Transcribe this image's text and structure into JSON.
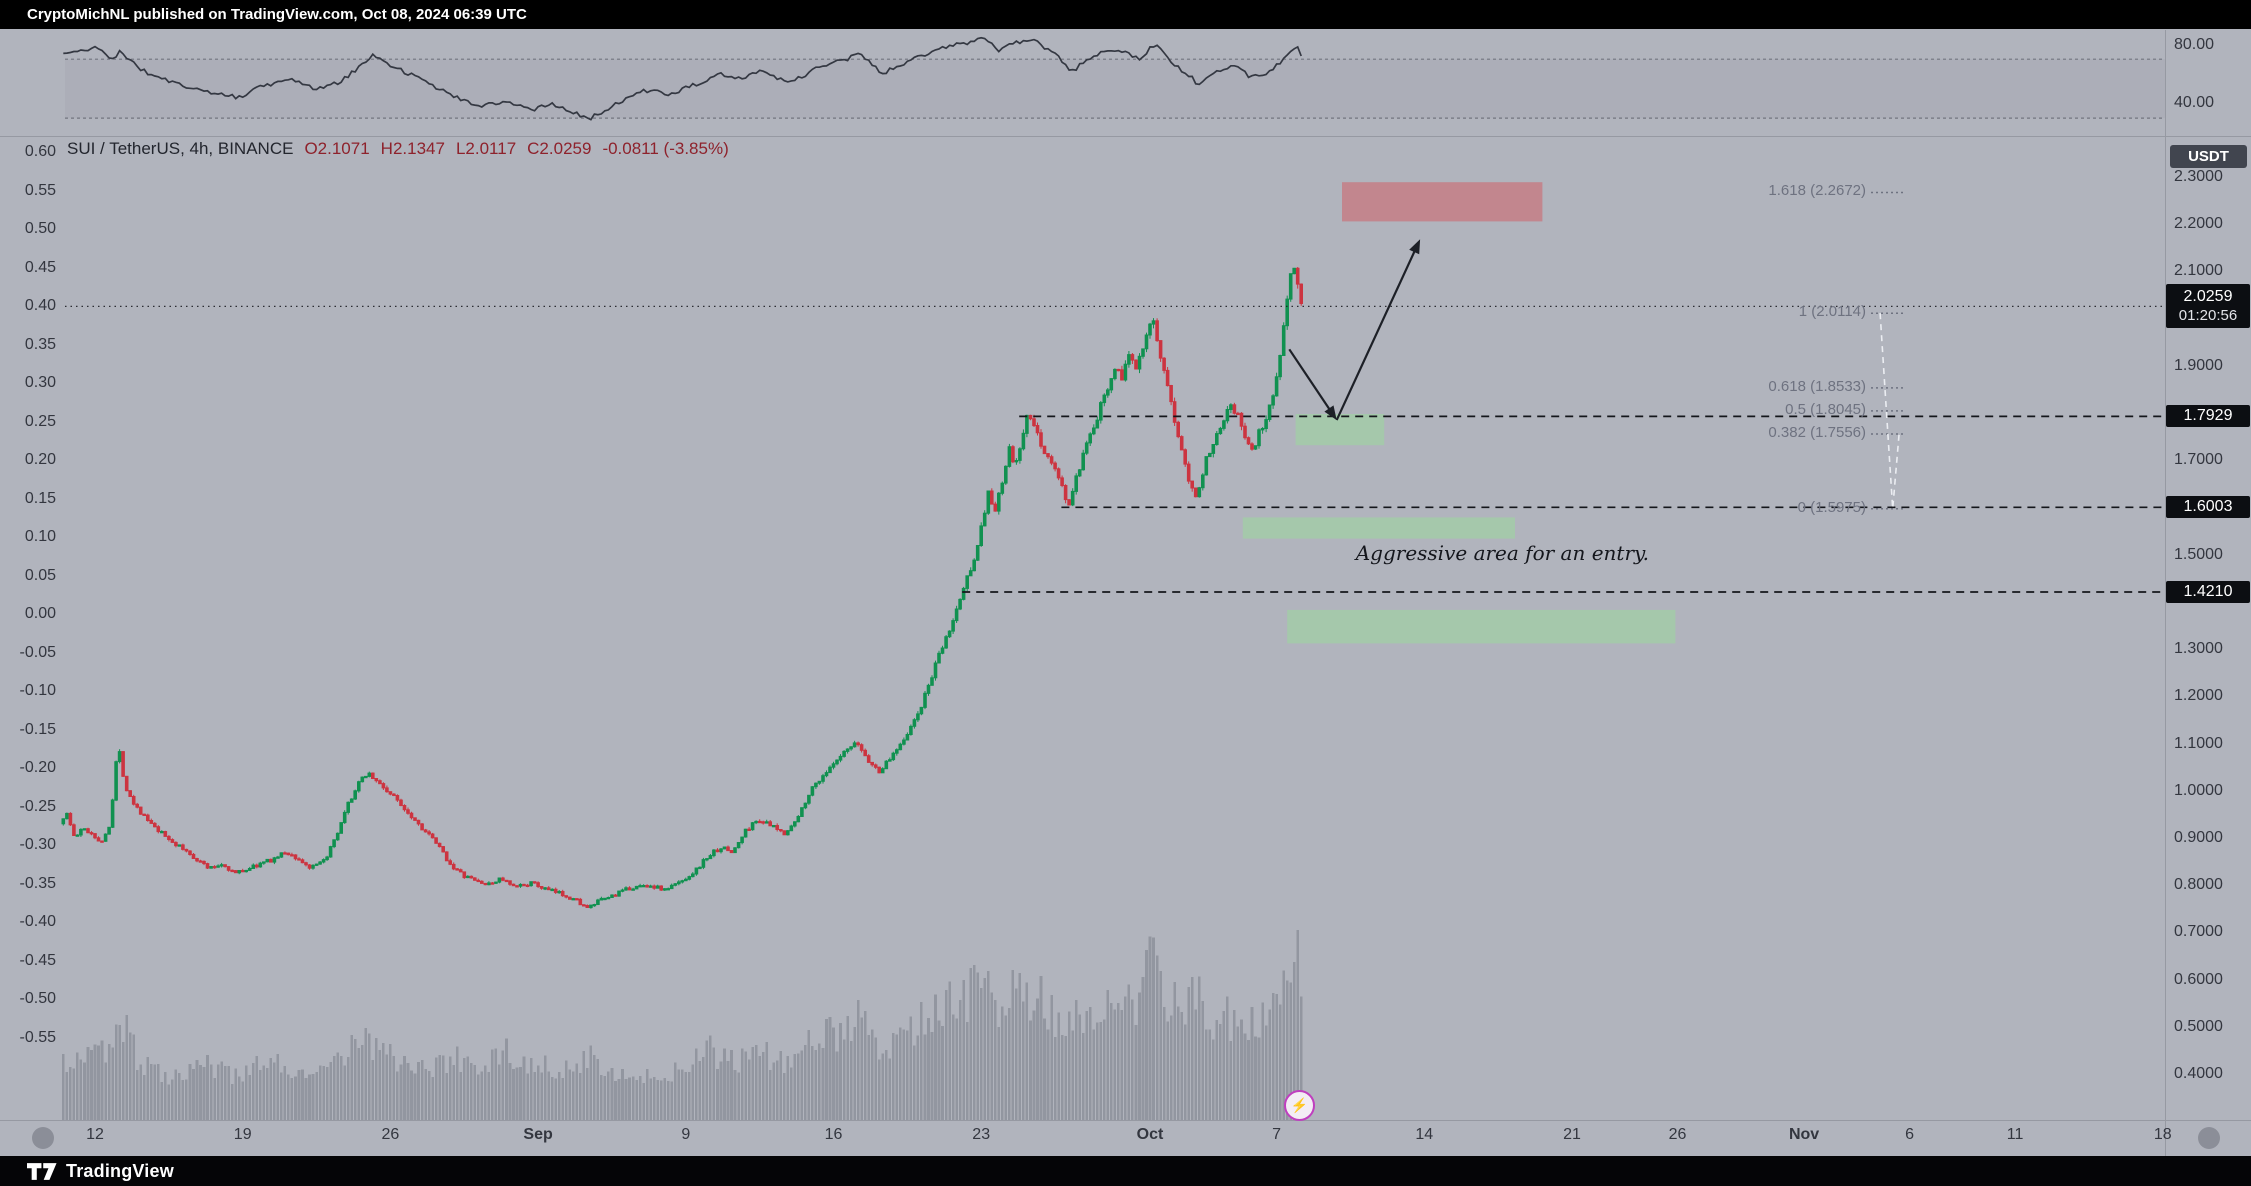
{
  "publish_bar": "CryptoMichNL published on TradingView.com, Oct 08, 2024 06:39 UTC",
  "footer": {
    "brand": "TradingView"
  },
  "chart_data": {
    "type": "candlestick",
    "symbol_line": {
      "title": "SUI / TetherUS, 4h, BINANCE",
      "open": "O2.1071",
      "high": "H2.1347",
      "low": "L2.0117",
      "close": "C2.0259",
      "change": "-0.0811 (-3.85%)"
    },
    "quote_badge": "USDT",
    "marker": {
      "glyph": "⚡"
    },
    "time_range": [
      -1.5,
      57.17
    ],
    "candle_interval_days": 0.16667,
    "price_axis": {
      "top_value": 2.3,
      "bottom_value": 0.4,
      "ticks": [
        "2.3000",
        "2.2000",
        "2.1000",
        "1.9000",
        "1.7000",
        "1.5000",
        "1.3000",
        "1.2000",
        "1.1000",
        "1.0000",
        "0.9000",
        "0.8000",
        "0.7000",
        "0.6000",
        "0.5000",
        "0.4000"
      ]
    },
    "left_axis_ticks": [
      "0.60",
      "0.55",
      "0.50",
      "0.45",
      "0.40",
      "0.35",
      "0.30",
      "0.25",
      "0.20",
      "0.15",
      "0.10",
      "0.05",
      "0.00",
      "-0.05",
      "-0.10",
      "-0.15",
      "-0.20",
      "-0.25",
      "-0.30",
      "-0.35",
      "-0.40",
      "-0.45",
      "-0.50",
      "-0.55"
    ],
    "indicator_pane": {
      "ticks": [
        {
          "label": "80.00",
          "value": 80
        },
        {
          "label": "40.00",
          "value": 40
        }
      ],
      "band": [
        70,
        30
      ]
    },
    "time_axis": {
      "origin_date": "Aug 12",
      "ticks": [
        {
          "label": "12",
          "d": 0
        },
        {
          "label": "19",
          "d": 7
        },
        {
          "label": "26",
          "d": 14
        },
        {
          "label": "Sep",
          "d": 21,
          "month": true
        },
        {
          "label": "9",
          "d": 28
        },
        {
          "label": "16",
          "d": 35
        },
        {
          "label": "23",
          "d": 42
        },
        {
          "label": "Oct",
          "d": 50,
          "month": true
        },
        {
          "label": "7",
          "d": 56
        },
        {
          "label": "14",
          "d": 63
        },
        {
          "label": "21",
          "d": 70
        },
        {
          "label": "26",
          "d": 75
        },
        {
          "label": "Nov",
          "d": 81,
          "month": true
        },
        {
          "label": "6",
          "d": 86
        },
        {
          "label": "11",
          "d": 91
        },
        {
          "label": "18",
          "d": 98
        }
      ]
    },
    "price_path": [
      [
        -1.5,
        0.93
      ],
      [
        -1.2,
        0.955
      ],
      [
        -0.8,
        0.9
      ],
      [
        -0.4,
        0.92
      ],
      [
        0,
        0.91
      ],
      [
        0.5,
        0.89
      ],
      [
        0.9,
        0.935
      ],
      [
        1.25,
        1.1
      ],
      [
        1.6,
        1.01
      ],
      [
        2,
        0.975
      ],
      [
        2.5,
        0.945
      ],
      [
        3,
        0.92
      ],
      [
        3.6,
        0.9
      ],
      [
        4.2,
        0.88
      ],
      [
        5,
        0.855
      ],
      [
        5.6,
        0.835
      ],
      [
        6.2,
        0.845
      ],
      [
        6.8,
        0.825
      ],
      [
        7.4,
        0.835
      ],
      [
        8,
        0.845
      ],
      [
        8.6,
        0.855
      ],
      [
        9.2,
        0.87
      ],
      [
        9.8,
        0.855
      ],
      [
        10.4,
        0.835
      ],
      [
        11,
        0.85
      ],
      [
        11.6,
        0.9
      ],
      [
        12.2,
        0.975
      ],
      [
        12.8,
        1.025
      ],
      [
        13.1,
        1.04
      ],
      [
        13.5,
        1.02
      ],
      [
        14,
        1.0
      ],
      [
        14.6,
        0.975
      ],
      [
        15.2,
        0.945
      ],
      [
        15.8,
        0.915
      ],
      [
        16.4,
        0.885
      ],
      [
        17,
        0.845
      ],
      [
        17.6,
        0.82
      ],
      [
        18.2,
        0.81
      ],
      [
        18.8,
        0.8
      ],
      [
        19.4,
        0.815
      ],
      [
        20,
        0.795
      ],
      [
        20.8,
        0.805
      ],
      [
        21.6,
        0.79
      ],
      [
        22.4,
        0.78
      ],
      [
        23.1,
        0.765
      ],
      [
        23.5,
        0.75
      ],
      [
        24,
        0.765
      ],
      [
        24.8,
        0.78
      ],
      [
        25.6,
        0.795
      ],
      [
        26.4,
        0.8
      ],
      [
        27.2,
        0.79
      ],
      [
        28,
        0.81
      ],
      [
        28.6,
        0.83
      ],
      [
        29.2,
        0.86
      ],
      [
        29.8,
        0.88
      ],
      [
        30.4,
        0.87
      ],
      [
        31,
        0.915
      ],
      [
        31.6,
        0.94
      ],
      [
        32.2,
        0.925
      ],
      [
        32.8,
        0.91
      ],
      [
        33.4,
        0.935
      ],
      [
        34,
        0.995
      ],
      [
        34.6,
        1.03
      ],
      [
        35.2,
        1.055
      ],
      [
        35.8,
        1.085
      ],
      [
        36.3,
        1.1
      ],
      [
        36.8,
        1.065
      ],
      [
        37.3,
        1.04
      ],
      [
        37.8,
        1.065
      ],
      [
        38.3,
        1.1
      ],
      [
        38.8,
        1.13
      ],
      [
        39.3,
        1.175
      ],
      [
        39.8,
        1.24
      ],
      [
        40.3,
        1.3
      ],
      [
        40.8,
        1.355
      ],
      [
        41.3,
        1.425
      ],
      [
        41.8,
        1.49
      ],
      [
        42.2,
        1.56
      ],
      [
        42.5,
        1.635
      ],
      [
        42.8,
        1.585
      ],
      [
        43.2,
        1.66
      ],
      [
        43.5,
        1.72
      ],
      [
        43.8,
        1.685
      ],
      [
        44.1,
        1.745
      ],
      [
        44.4,
        1.8
      ],
      [
        44.7,
        1.765
      ],
      [
        45.1,
        1.725
      ],
      [
        45.6,
        1.685
      ],
      [
        46,
        1.645
      ],
      [
        46.3,
        1.6
      ],
      [
        46.7,
        1.665
      ],
      [
        47.1,
        1.72
      ],
      [
        47.6,
        1.78
      ],
      [
        48.1,
        1.85
      ],
      [
        48.5,
        1.9
      ],
      [
        48.9,
        1.875
      ],
      [
        49.2,
        1.93
      ],
      [
        49.5,
        1.9
      ],
      [
        49.9,
        1.955
      ],
      [
        50.25,
        2.01
      ],
      [
        50.6,
        1.925
      ],
      [
        51,
        1.85
      ],
      [
        51.35,
        1.78
      ],
      [
        51.7,
        1.725
      ],
      [
        52,
        1.665
      ],
      [
        52.3,
        1.62
      ],
      [
        52.7,
        1.68
      ],
      [
        53.1,
        1.735
      ],
      [
        53.6,
        1.785
      ],
      [
        54,
        1.825
      ],
      [
        54.35,
        1.79
      ],
      [
        54.7,
        1.745
      ],
      [
        55.05,
        1.72
      ],
      [
        55.4,
        1.765
      ],
      [
        55.75,
        1.8
      ],
      [
        56.1,
        1.855
      ],
      [
        56.4,
        1.95
      ],
      [
        56.7,
        2.06
      ],
      [
        56.95,
        2.13
      ],
      [
        57.15,
        2.075
      ],
      [
        57.33,
        2.026
      ]
    ],
    "rsi_path": [
      [
        -1.5,
        73
      ],
      [
        0,
        78
      ],
      [
        0.9,
        70
      ],
      [
        1.25,
        76
      ],
      [
        2,
        64
      ],
      [
        3,
        58
      ],
      [
        4.2,
        52
      ],
      [
        5.6,
        47
      ],
      [
        6.8,
        44
      ],
      [
        8,
        52
      ],
      [
        9.2,
        57
      ],
      [
        10.4,
        50
      ],
      [
        11.6,
        54
      ],
      [
        12.8,
        68
      ],
      [
        13.1,
        73
      ],
      [
        14.6,
        62
      ],
      [
        15.8,
        54
      ],
      [
        17,
        45
      ],
      [
        18.2,
        38
      ],
      [
        19.4,
        42
      ],
      [
        20.8,
        36
      ],
      [
        21.6,
        40
      ],
      [
        22.4,
        35
      ],
      [
        23.5,
        30
      ],
      [
        24.8,
        40
      ],
      [
        25.6,
        46
      ],
      [
        26.4,
        50
      ],
      [
        27.2,
        45
      ],
      [
        28.6,
        54
      ],
      [
        29.8,
        60
      ],
      [
        30.4,
        56
      ],
      [
        31.6,
        62
      ],
      [
        32.8,
        55
      ],
      [
        33.4,
        58
      ],
      [
        34.6,
        66
      ],
      [
        35.8,
        71
      ],
      [
        36.3,
        74
      ],
      [
        37.3,
        60
      ],
      [
        38.3,
        67
      ],
      [
        39.3,
        73
      ],
      [
        40.3,
        78
      ],
      [
        41.3,
        81
      ],
      [
        42.2,
        84
      ],
      [
        42.8,
        76
      ],
      [
        43.5,
        81
      ],
      [
        44.4,
        84
      ],
      [
        45.6,
        72
      ],
      [
        46.3,
        62
      ],
      [
        47.1,
        70
      ],
      [
        48.1,
        77
      ],
      [
        48.9,
        74
      ],
      [
        49.5,
        71
      ],
      [
        50.25,
        80
      ],
      [
        51,
        68
      ],
      [
        52,
        57
      ],
      [
        52.3,
        53
      ],
      [
        53.1,
        62
      ],
      [
        54,
        66
      ],
      [
        54.7,
        58
      ],
      [
        55.4,
        60
      ],
      [
        56.1,
        67
      ],
      [
        56.95,
        79
      ],
      [
        57.33,
        68
      ]
    ],
    "volume_envelope": [
      [
        -1.5,
        0.3
      ],
      [
        0.9,
        0.35
      ],
      [
        1.25,
        0.5
      ],
      [
        2,
        0.3
      ],
      [
        3.6,
        0.22
      ],
      [
        5,
        0.28
      ],
      [
        6.8,
        0.2
      ],
      [
        8,
        0.3
      ],
      [
        9.2,
        0.26
      ],
      [
        10.4,
        0.2
      ],
      [
        11.6,
        0.3
      ],
      [
        12.5,
        0.42
      ],
      [
        13.1,
        0.38
      ],
      [
        14.6,
        0.28
      ],
      [
        15.8,
        0.25
      ],
      [
        17,
        0.3
      ],
      [
        18.2,
        0.28
      ],
      [
        19.4,
        0.33
      ],
      [
        20.8,
        0.28
      ],
      [
        22.4,
        0.24
      ],
      [
        23.5,
        0.32
      ],
      [
        24.8,
        0.24
      ],
      [
        26.4,
        0.2
      ],
      [
        28,
        0.26
      ],
      [
        29.2,
        0.34
      ],
      [
        30.4,
        0.28
      ],
      [
        31.6,
        0.34
      ],
      [
        32.8,
        0.26
      ],
      [
        34,
        0.4
      ],
      [
        35.2,
        0.44
      ],
      [
        36.3,
        0.5
      ],
      [
        37.3,
        0.36
      ],
      [
        38.3,
        0.42
      ],
      [
        39.3,
        0.52
      ],
      [
        40.3,
        0.56
      ],
      [
        41.3,
        0.62
      ],
      [
        42.2,
        0.68
      ],
      [
        42.8,
        0.52
      ],
      [
        43.5,
        0.6
      ],
      [
        44.4,
        0.64
      ],
      [
        45.6,
        0.5
      ],
      [
        46.3,
        0.56
      ],
      [
        47.6,
        0.5
      ],
      [
        48.5,
        0.6
      ],
      [
        49.5,
        0.56
      ],
      [
        50.25,
        1.0
      ],
      [
        50.6,
        0.62
      ],
      [
        51.35,
        0.56
      ],
      [
        52.3,
        0.62
      ],
      [
        53.1,
        0.46
      ],
      [
        54,
        0.52
      ],
      [
        55.05,
        0.46
      ],
      [
        56.1,
        0.56
      ],
      [
        56.7,
        0.76
      ],
      [
        56.95,
        0.8
      ],
      [
        57.33,
        0.6
      ]
    ],
    "levels": [
      {
        "label": "1.7929",
        "price": 1.7929,
        "from": 43.8
      },
      {
        "label": "1.6003",
        "price": 1.6003,
        "from": 45.8
      },
      {
        "label": "1.4210",
        "price": 1.421,
        "from": 41.1
      }
    ],
    "current_price": {
      "value": 2.0259,
      "label": "2.0259",
      "countdown": "01:20:56"
    },
    "fib": {
      "levels": [
        {
          "ratio": "1.618",
          "price": 2.2672,
          "label": "1.618 (2.2672)"
        },
        {
          "ratio": "1",
          "price": 2.0114,
          "label": "1 (2.0114)"
        },
        {
          "ratio": "0.618",
          "price": 1.8533,
          "label": "0.618 (1.8533)"
        },
        {
          "ratio": "0.5",
          "price": 1.8045,
          "label": "0.5 (1.8045)"
        },
        {
          "ratio": "0.382",
          "price": 1.7556,
          "label": "0.382 (1.7556)"
        },
        {
          "ratio": "0",
          "price": 1.5975,
          "label": "0 (1.5975)"
        }
      ],
      "connector": [
        [
          84.6,
          2.0114
        ],
        [
          85.2,
          1.5975
        ],
        [
          85.5,
          1.7556
        ]
      ]
    },
    "zones": [
      {
        "name": "resistance-zone",
        "kind": "red",
        "t0": 59.1,
        "t1": 68.6,
        "p0": 2.206,
        "p1": 2.289
      },
      {
        "name": "entry-zone-1",
        "kind": "green",
        "t0": 56.9,
        "t1": 61.1,
        "p0": 1.732,
        "p1": 1.798
      },
      {
        "name": "entry-zone-2",
        "kind": "green",
        "t0": 54.4,
        "t1": 67.3,
        "p0": 1.534,
        "p1": 1.579
      },
      {
        "name": "entry-zone-3",
        "kind": "green",
        "t0": 56.5,
        "t1": 74.9,
        "p0": 1.312,
        "p1": 1.383
      }
    ],
    "arrows": [
      {
        "from": [
          56.6,
          1.935
        ],
        "to": [
          58.85,
          1.785
        ]
      },
      {
        "from": [
          58.85,
          1.785
        ],
        "to": [
          62.8,
          2.168
        ]
      }
    ],
    "annotation": {
      "text": "Aggressive area for an entry.",
      "t": 66.7,
      "p": 1.504
    },
    "colors": {
      "background": "#b1b4bd",
      "up": "#119150",
      "down": "#cc3440",
      "volume": "#8d919b",
      "zone_red": "#c2868e",
      "zone_green": "#a5c8ab",
      "level_line": "#14161b",
      "fib_text": "#6e7280",
      "rsi_line": "#343842",
      "arrow": "#1d2027",
      "axis_text": "#33363f"
    }
  }
}
